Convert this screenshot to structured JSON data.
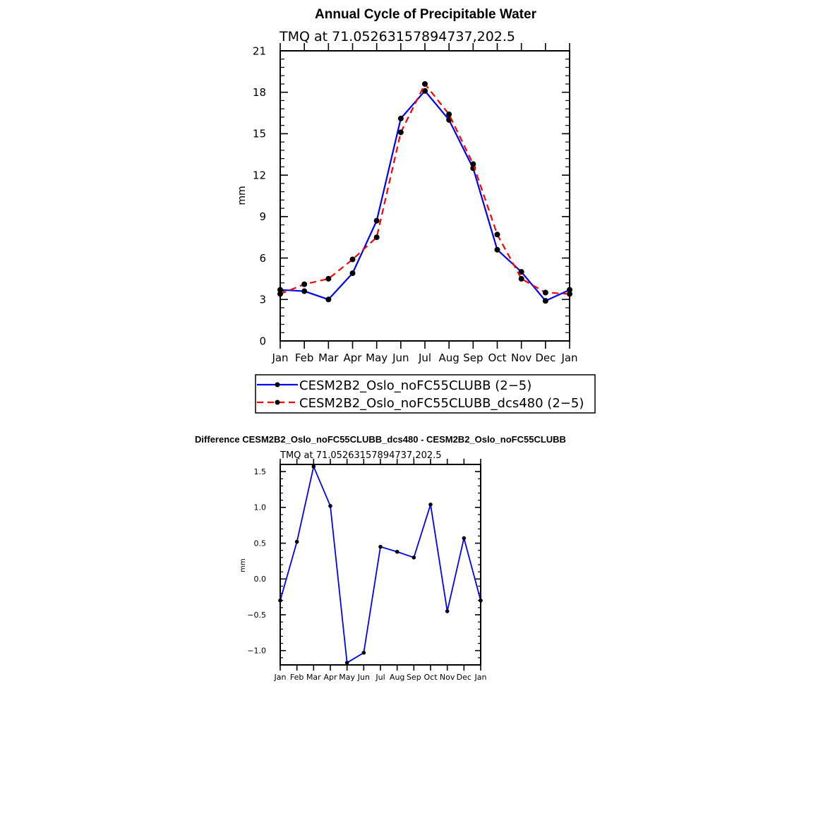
{
  "chart_data": [
    {
      "type": "line",
      "title": "Annual Cycle of Precipitable Water",
      "subtitle": "TMQ  at  71.05263157894737,202.5",
      "ylabel": "mm",
      "xlabel": "",
      "ylim": [
        0,
        21
      ],
      "yticks": [
        0,
        3,
        6,
        9,
        12,
        15,
        18,
        21
      ],
      "categories": [
        "Jan",
        "Feb",
        "Mar",
        "Apr",
        "May",
        "Jun",
        "Jul",
        "Aug",
        "Sep",
        "Oct",
        "Nov",
        "Dec",
        "Jan"
      ],
      "series": [
        {
          "name": "CESM2B2_Oslo_noFC55CLUBB (2−5)",
          "color": "#0000ff",
          "dash": "solid",
          "values": [
            3.7,
            3.6,
            3.0,
            4.9,
            8.7,
            16.1,
            18.1,
            16.0,
            12.5,
            6.6,
            5.0,
            2.9,
            3.7
          ]
        },
        {
          "name": "CESM2B2_Oslo_noFC55CLUBB_dcs480 (2−5)",
          "color": "#ff0000",
          "dash": "dashed",
          "values": [
            3.4,
            4.1,
            4.5,
            5.9,
            7.5,
            15.1,
            18.6,
            16.4,
            12.8,
            7.7,
            4.5,
            3.5,
            3.4
          ]
        }
      ]
    },
    {
      "type": "line",
      "title": "Difference CESM2B2_Oslo_noFC55CLUBB_dcs480 - CESM2B2_Oslo_noFC55CLUBB",
      "subtitle": "TMQ  at  71.05263157894737,202.5",
      "ylabel": "mm",
      "xlabel": "",
      "ylim": [
        -1.2,
        1.6
      ],
      "yticks": [
        -1.0,
        -0.5,
        0.0,
        0.5,
        1.0,
        1.5
      ],
      "ytick_labels": [
        "−1.0",
        "−0.5",
        "0.0",
        "0.5",
        "1.0",
        "1.5"
      ],
      "categories": [
        "Jan",
        "Feb",
        "Mar",
        "Apr",
        "May",
        "Jun",
        "Jul",
        "Aug",
        "Sep",
        "Oct",
        "Nov",
        "Dec",
        "Jan"
      ],
      "series": [
        {
          "name": "difference",
          "color": "#0000ff",
          "dash": "solid",
          "values": [
            -0.3,
            0.52,
            1.57,
            1.02,
            -1.17,
            -1.03,
            0.45,
            0.38,
            0.3,
            1.04,
            -0.45,
            0.57,
            -0.3
          ]
        }
      ]
    }
  ]
}
